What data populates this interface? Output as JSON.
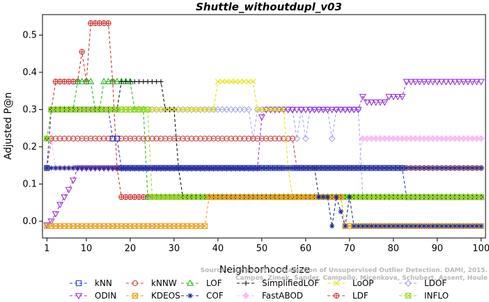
{
  "chart_data": {
    "type": "line",
    "title": "Shuttle_withoutdupl_v03",
    "xlabel": "Neighborhood size",
    "ylabel": "Adjusted P@n",
    "xlim": [
      0,
      101
    ],
    "ylim": [
      -0.045,
      0.555
    ],
    "xticks": [
      1,
      10,
      20,
      30,
      40,
      50,
      60,
      70,
      80,
      90,
      100
    ],
    "yticks": [
      0.0,
      0.1,
      0.2,
      0.3,
      0.4,
      0.5
    ],
    "ytick_labels": [
      "0.0",
      "0.1",
      "0.2",
      "0.3",
      "0.4",
      "0.5"
    ],
    "legend_position": "bottom",
    "watermark_lines": [
      "Source: Campos et al. Evaluation of Unsupervised Outlier Detection. DAMI, 2015.",
      "Campos, Zimek, Sander, Campello, Micenkova, Schubert, Assent, Houle"
    ],
    "series": [
      {
        "name": "kNN",
        "color": "#2a3fd0",
        "marker": "square",
        "segments": [
          [
            1,
            0.143
          ],
          [
            2,
            0.3
          ],
          [
            15,
            0.3
          ],
          [
            16,
            0.222
          ],
          [
            17,
            0.222
          ],
          [
            18,
            0.143
          ],
          [
            82,
            0.143
          ],
          [
            83,
            0.065
          ],
          [
            100,
            0.065
          ]
        ]
      },
      {
        "name": "kNNW",
        "color": "#d44545",
        "marker": "circle",
        "segments": [
          [
            1,
            0.143
          ],
          [
            2,
            0.222
          ],
          [
            57,
            0.222
          ],
          [
            58,
            0.143
          ],
          [
            100,
            0.143
          ]
        ]
      },
      {
        "name": "LOF",
        "color": "#22bb22",
        "marker": "triangle-up",
        "segments": [
          [
            1,
            0.222
          ],
          [
            2,
            0.3
          ],
          [
            7,
            0.3
          ],
          [
            8,
            0.375
          ],
          [
            11,
            0.375
          ],
          [
            12,
            0.3
          ],
          [
            13,
            0.3
          ],
          [
            14,
            0.375
          ],
          [
            20,
            0.375
          ],
          [
            21,
            0.3
          ],
          [
            23,
            0.3
          ],
          [
            24,
            0.065
          ],
          [
            100,
            0.065
          ]
        ]
      },
      {
        "name": "SimplifiedLOF",
        "color": "#111111",
        "marker": "plus",
        "segments": [
          [
            1,
            0.222
          ],
          [
            2,
            0.3
          ],
          [
            17,
            0.3
          ],
          [
            18,
            0.375
          ],
          [
            27,
            0.375
          ],
          [
            28,
            0.3
          ],
          [
            30,
            0.3
          ],
          [
            31,
            0.143
          ],
          [
            32,
            0.065
          ],
          [
            100,
            0.065
          ]
        ]
      },
      {
        "name": "LoOP",
        "color": "#e6e600",
        "marker": "x",
        "segments": [
          [
            1,
            0.222
          ],
          [
            2,
            0.3
          ],
          [
            39,
            0.3
          ],
          [
            40,
            0.375
          ],
          [
            48,
            0.375
          ],
          [
            49,
            0.3
          ],
          [
            55,
            0.3
          ],
          [
            56,
            0.143
          ],
          [
            57,
            0.065
          ],
          [
            100,
            0.065
          ]
        ]
      },
      {
        "name": "LDOF",
        "color": "#a8a8ee",
        "marker": "diamond",
        "segments": [
          [
            1,
            0.143
          ],
          [
            2,
            0.3
          ],
          [
            47,
            0.3
          ],
          [
            48,
            0.222
          ],
          [
            49,
            0.3
          ],
          [
            57,
            0.3
          ],
          [
            58,
            0.222
          ],
          [
            59,
            0.3
          ],
          [
            60,
            0.222
          ],
          [
            61,
            0.3
          ],
          [
            65,
            0.3
          ],
          [
            66,
            0.222
          ],
          [
            67,
            0.3
          ],
          [
            72,
            0.3
          ],
          [
            73,
            0.065
          ],
          [
            100,
            0.065
          ]
        ]
      },
      {
        "name": "ODIN",
        "color": "#9933dd",
        "marker": "triangle-down",
        "segments": [
          [
            1,
            -0.01
          ],
          [
            2,
            0.0
          ],
          [
            3,
            0.02
          ],
          [
            4,
            0.045
          ],
          [
            5,
            0.065
          ],
          [
            6,
            0.085
          ],
          [
            7,
            0.11
          ],
          [
            8,
            0.143
          ],
          [
            49,
            0.143
          ],
          [
            50,
            0.28
          ],
          [
            51,
            0.3
          ],
          [
            72,
            0.3
          ],
          [
            73,
            0.335
          ],
          [
            74,
            0.32
          ],
          [
            78,
            0.32
          ],
          [
            79,
            0.335
          ],
          [
            82,
            0.335
          ],
          [
            83,
            0.375
          ],
          [
            100,
            0.375
          ]
        ]
      },
      {
        "name": "KDEOS",
        "color": "#f0a020",
        "marker": "square-x",
        "segments": [
          [
            1,
            -0.013
          ],
          [
            37,
            -0.013
          ],
          [
            38,
            0.065
          ],
          [
            68,
            0.065
          ],
          [
            69,
            -0.013
          ],
          [
            100,
            -0.013
          ]
        ]
      },
      {
        "name": "COF",
        "color": "#1a2a90",
        "marker": "asterisk",
        "segments": [
          [
            1,
            0.143
          ],
          [
            100,
            0.143
          ]
        ],
        "extra": [
          [
            62,
            0.143
          ],
          [
            63,
            0.065
          ],
          [
            65,
            0.065
          ],
          [
            66,
            -0.013
          ],
          [
            67,
            0.065
          ],
          [
            69,
            -0.013
          ],
          [
            70,
            0.065
          ],
          [
            71,
            -0.013
          ],
          [
            100,
            -0.013
          ]
        ]
      },
      {
        "name": "FastABOD",
        "color": "#f4c0f4",
        "marker": "diamond-filled",
        "segments": [
          [
            1,
            0.143
          ],
          [
            2,
            0.222
          ],
          [
            3,
            0.143
          ],
          [
            72,
            0.143
          ],
          [
            73,
            0.222
          ],
          [
            100,
            0.222
          ]
        ]
      },
      {
        "name": "LDF",
        "color": "#cc3333",
        "marker": "circle-plus",
        "segments": [
          [
            1,
            0.222
          ],
          [
            3,
            0.375
          ],
          [
            8,
            0.375
          ],
          [
            9,
            0.455
          ],
          [
            10,
            0.375
          ],
          [
            11,
            0.532
          ],
          [
            15,
            0.532
          ],
          [
            16,
            0.375
          ],
          [
            17,
            0.143
          ],
          [
            18,
            0.065
          ],
          [
            100,
            0.065
          ]
        ]
      },
      {
        "name": "INFLO",
        "color": "#99dd22",
        "marker": "square-x",
        "segments": [
          [
            1,
            0.222
          ],
          [
            2,
            0.3
          ],
          [
            24,
            0.3
          ],
          [
            25,
            0.065
          ],
          [
            100,
            0.065
          ]
        ]
      }
    ]
  }
}
